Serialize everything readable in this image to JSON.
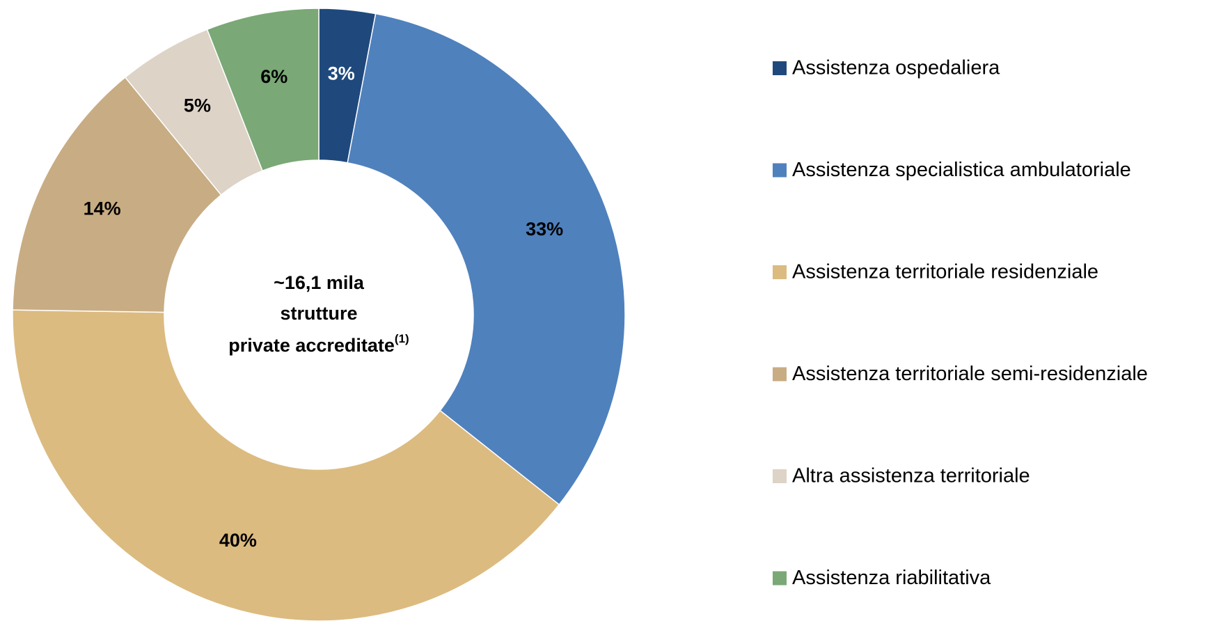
{
  "chart_data": {
    "type": "donut",
    "categories": [
      "Assistenza ospedaliera",
      "Assistenza specialistica ambulatoriale",
      "Assistenza territoriale residenziale",
      "Assistenza territoriale semi-residenziale",
      "Altra assistenza territoriale",
      "Assistenza riabilitativa"
    ],
    "values": [
      3,
      33,
      40,
      14,
      5,
      6
    ],
    "value_labels": [
      "3%",
      "33%",
      "40%",
      "14%",
      "5%",
      "6%"
    ],
    "colors": [
      "#1f497d",
      "#4f81bd",
      "#dcbb80",
      "#c8ac83",
      "#ddd3c6",
      "#7aa876"
    ],
    "center_text": [
      "~16,1 mila",
      "strutture",
      "private accreditate"
    ],
    "footnote_marker": "(1)",
    "legend": "right"
  }
}
